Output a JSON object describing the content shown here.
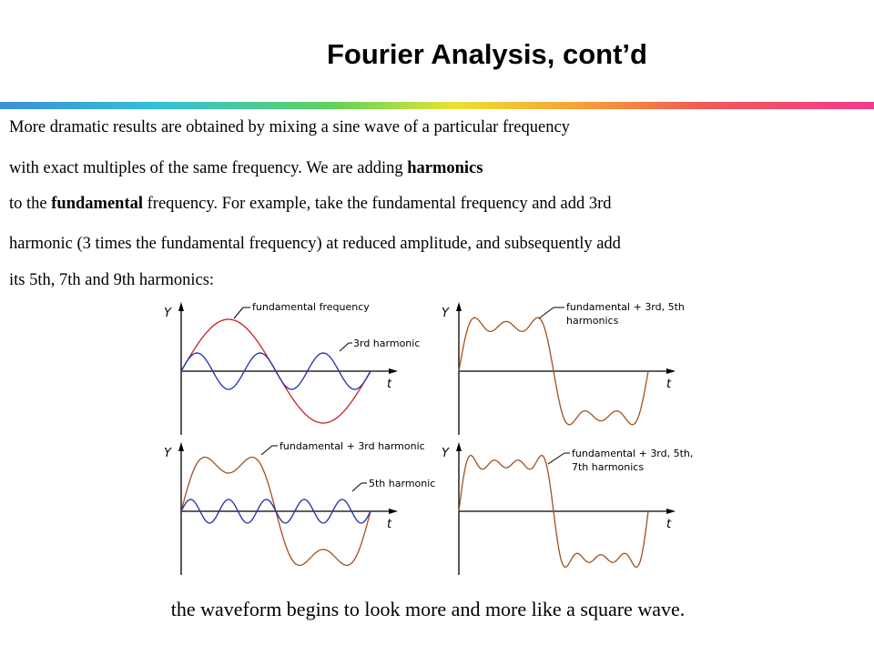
{
  "title": "Fourier Analysis, cont’d",
  "paragraph": {
    "line1": "More dramatic results are obtained by mixing a sine wave of a particular frequency",
    "line2_pre": "with exact multiples of the same frequency.  We are adding ",
    "line2_bold": "harmonics",
    "line3_pre": " to the ",
    "line3_bold": "fundamental",
    "line3_post": " frequency.  For example, take the fundamental frequency and add 3rd",
    "line4": "harmonic (3 times the fundamental frequency) at reduced amplitude, and subsequently add",
    "line5": "its 5th, 7th and 9th harmonics:"
  },
  "graphs": {
    "g1": {
      "y_axis": "Y",
      "x_axis": "t",
      "label_a": "fundamental frequency",
      "label_b": "3rd harmonic"
    },
    "g2": {
      "y_axis": "Y",
      "x_axis": "t",
      "label_a_line1": "fundamental + 3rd, 5th",
      "label_a_line2": "harmonics"
    },
    "g3": {
      "y_axis": "Y",
      "x_axis": "t",
      "label_a": "fundamental + 3rd harmonic",
      "label_b": "5th harmonic"
    },
    "g4": {
      "y_axis": "Y",
      "x_axis": "t",
      "label_a_line1": "fundamental + 3rd, 5th,",
      "label_a_line2": "7th harmonics"
    }
  },
  "colors": {
    "fundamental": "#c8202a",
    "harmonic": "#1f2fa8",
    "sum": "#a0521d"
  },
  "caption": "the waveform begins to look more and more like a square wave."
}
